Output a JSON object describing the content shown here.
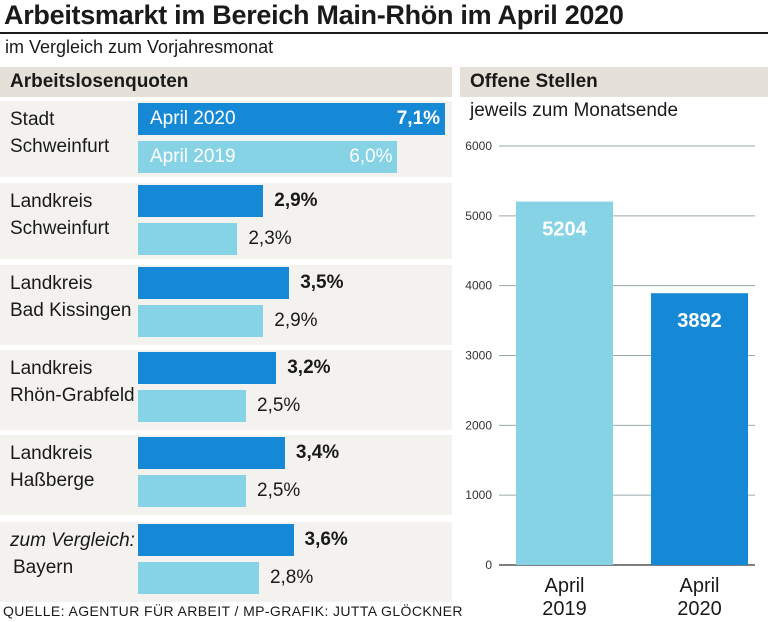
{
  "title": "Arbeitsmarkt im Bereich Main-Rhön im April 2020",
  "subtitle": "im Vergleich zum Vorjahresmonat",
  "source": "QUELLE: AGENTUR FÜR ARBEIT / MP-GRAFIK: JUTTA GLÖCKNER",
  "colors": {
    "april_2020": "#1689d6",
    "april_2019": "#86d3e6",
    "panel_header": "#e5e1d9",
    "panel_bg": "#f4f2ee"
  },
  "left_panel": {
    "heading": "Arbeitslosenquoten"
  },
  "right_panel": {
    "heading": "Offene Stellen",
    "subheading": "jeweils zum Monatsende"
  },
  "chart_data": [
    {
      "type": "bar",
      "orientation": "horizontal",
      "title": "Arbeitslosenquoten",
      "categories": [
        [
          "Stadt",
          "Schweinfurt"
        ],
        [
          "Landkreis",
          "Schweinfurt"
        ],
        [
          "Landkreis",
          "Bad Kissingen"
        ],
        [
          "Landkreis",
          "Rhön-Grabfeld"
        ],
        [
          "Landkreis",
          "Haßberge"
        ],
        [
          "zum Vergleich:",
          "Bayern"
        ]
      ],
      "series": [
        {
          "name": "April 2020",
          "values": [
            7.1,
            2.9,
            3.5,
            3.2,
            3.4,
            3.6
          ],
          "labels": [
            "7,1%",
            "2,9%",
            "3,5%",
            "3,2%",
            "3,4%",
            "3,6%"
          ]
        },
        {
          "name": "April 2019",
          "values": [
            6.0,
            2.3,
            2.9,
            2.5,
            2.5,
            2.8
          ],
          "labels": [
            "6,0%",
            "2,3%",
            "2,9%",
            "2,5%",
            "2,5%",
            "2,8%"
          ]
        }
      ]
    },
    {
      "type": "bar",
      "title": "Offene Stellen",
      "subtitle": "jeweils zum Monatsende",
      "categories": [
        [
          "April",
          "2019"
        ],
        [
          "April",
          "2020"
        ]
      ],
      "values": [
        5204,
        3892
      ],
      "value_labels": [
        "5204",
        "3892"
      ],
      "bar_colors": [
        "#86d3e6",
        "#1689d6"
      ],
      "ylim": [
        0,
        6000
      ],
      "yticks": [
        0,
        1000,
        2000,
        3000,
        4000,
        5000,
        6000
      ],
      "grid": true
    }
  ]
}
